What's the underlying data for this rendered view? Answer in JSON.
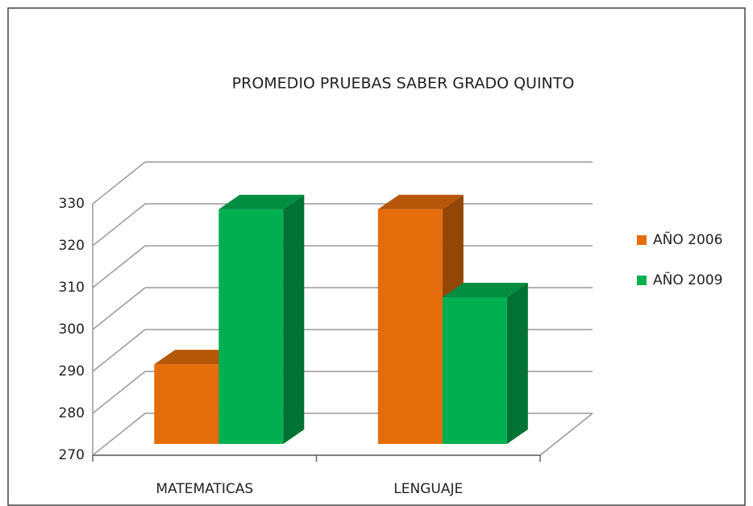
{
  "chart_data": {
    "type": "bar3d",
    "title": "PROMEDIO PRUEBAS SABER GRADO QUINTO",
    "categories": [
      "MATEMATICAS",
      "LENGUAJE"
    ],
    "series": [
      {
        "name": "AÑO 2006",
        "color": "#e46c0a",
        "values": [
          289,
          326
        ]
      },
      {
        "name": "AÑO 2009",
        "color": "#00b050",
        "values": [
          326,
          305
        ]
      }
    ],
    "ylim": [
      270,
      330
    ],
    "yticks": [
      270,
      280,
      290,
      300,
      310,
      320,
      330
    ],
    "grid": true,
    "legend": "right"
  }
}
